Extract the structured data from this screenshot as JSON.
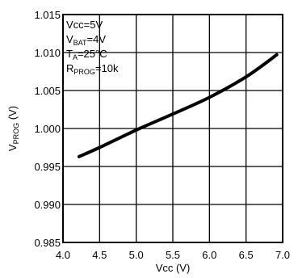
{
  "chart_data": {
    "type": "line",
    "title": "",
    "xlabel": "Vcc (V)",
    "ylabel_main": "V",
    "ylabel_sub": "PROG",
    "ylabel_unit": " (V)",
    "xlim": [
      4.0,
      7.0
    ],
    "ylim": [
      0.985,
      1.015
    ],
    "grid": true,
    "x_ticks": [
      "4.0",
      "4.5",
      "5.0",
      "5.5",
      "6.0",
      "6.5",
      "7.0"
    ],
    "y_ticks": [
      "0.985",
      "0.990",
      "0.995",
      "1.000",
      "1.005",
      "1.010",
      "1.015"
    ],
    "series": [
      {
        "x": [
          4.22,
          4.5,
          5.0,
          5.5,
          6.0,
          6.5,
          6.92
        ],
        "y": [
          0.9963,
          0.9975,
          0.9998,
          1.0019,
          1.0041,
          1.0068,
          1.0097
        ]
      }
    ],
    "conditions": [
      {
        "main": "Vcc=5V",
        "sub": "",
        "tail": ""
      },
      {
        "main": "V",
        "sub": "BAT",
        "tail": "=4V"
      },
      {
        "main": "T",
        "sub": "A",
        "tail": "=25°C"
      },
      {
        "main": "R",
        "sub": "PROG",
        "tail": "=10k"
      }
    ]
  }
}
